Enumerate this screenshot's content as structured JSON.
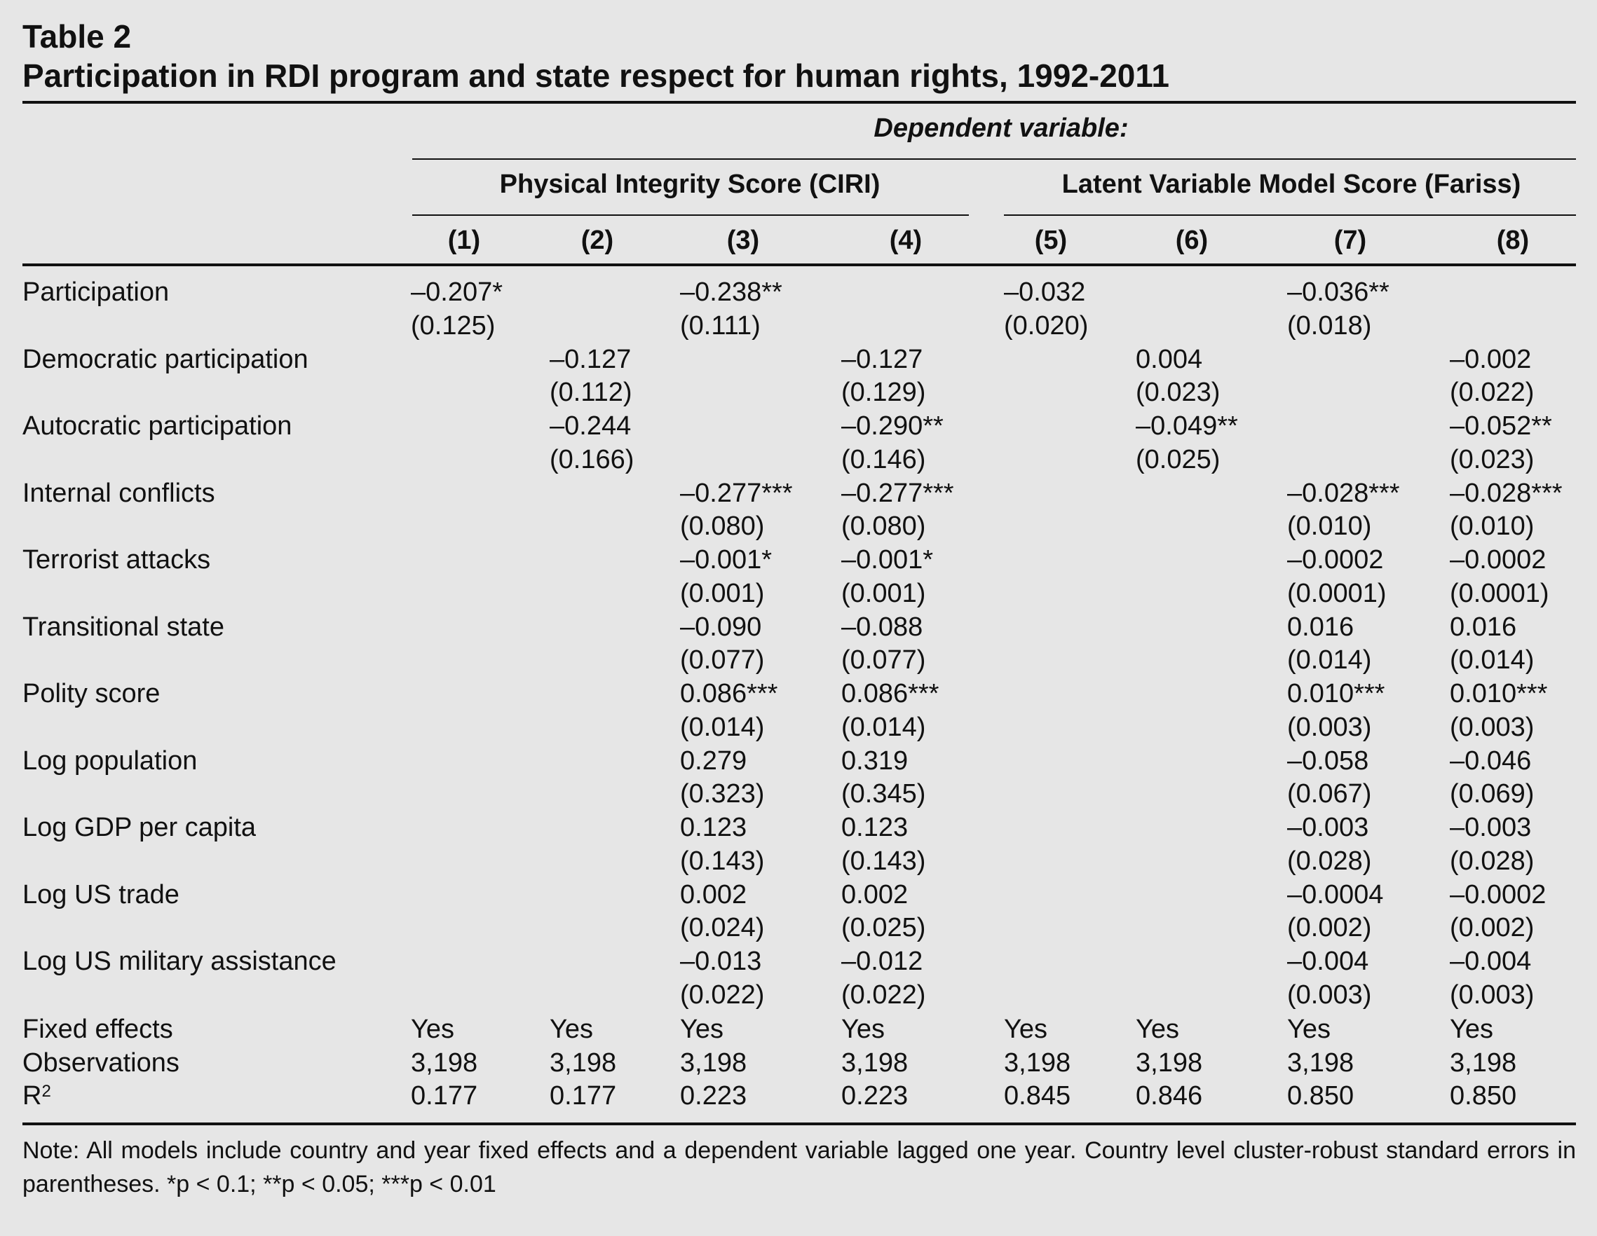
{
  "table_label": "Table 2",
  "table_title": "Participation in RDI program and state respect for human rights, 1992-2011",
  "dependent_variable_label": "Dependent variable:",
  "groups": [
    {
      "label": "Physical Integrity Score (CIRI)"
    },
    {
      "label": "Latent Variable Model Score (Fariss)"
    }
  ],
  "columns": [
    "(1)",
    "(2)",
    "(3)",
    "(4)",
    "(5)",
    "(6)",
    "(7)",
    "(8)"
  ],
  "rows": [
    {
      "label": "Participation",
      "coef": [
        "–0.207*",
        "",
        "–0.238**",
        "",
        "–0.032",
        "",
        "–0.036**",
        ""
      ],
      "se": [
        "(0.125)",
        "",
        "(0.111)",
        "",
        "(0.020)",
        "",
        "(0.018)",
        ""
      ]
    },
    {
      "label": "Democratic participation",
      "coef": [
        "",
        "–0.127",
        "",
        "–0.127",
        "",
        "0.004",
        "",
        "–0.002"
      ],
      "se": [
        "",
        "(0.112)",
        "",
        "(0.129)",
        "",
        "(0.023)",
        "",
        "(0.022)"
      ]
    },
    {
      "label": "Autocratic participation",
      "coef": [
        "",
        "–0.244",
        "",
        "–0.290**",
        "",
        "–0.049**",
        "",
        "–0.052**"
      ],
      "se": [
        "",
        "(0.166)",
        "",
        "(0.146)",
        "",
        "(0.025)",
        "",
        "(0.023)"
      ]
    },
    {
      "label": "Internal conflicts",
      "coef": [
        "",
        "",
        "–0.277***",
        "–0.277***",
        "",
        "",
        "–0.028***",
        "–0.028***"
      ],
      "se": [
        "",
        "",
        "(0.080)",
        "(0.080)",
        "",
        "",
        "(0.010)",
        "(0.010)"
      ]
    },
    {
      "label": "Terrorist attacks",
      "coef": [
        "",
        "",
        "–0.001*",
        "–0.001*",
        "",
        "",
        "–0.0002",
        "–0.0002"
      ],
      "se": [
        "",
        "",
        "(0.001)",
        "(0.001)",
        "",
        "",
        "(0.0001)",
        "(0.0001)"
      ]
    },
    {
      "label": "Transitional state",
      "coef": [
        "",
        "",
        "–0.090",
        "–0.088",
        "",
        "",
        "0.016",
        "0.016"
      ],
      "se": [
        "",
        "",
        "(0.077)",
        "(0.077)",
        "",
        "",
        "(0.014)",
        "(0.014)"
      ]
    },
    {
      "label": "Polity score",
      "coef": [
        "",
        "",
        "0.086***",
        "0.086***",
        "",
        "",
        "0.010***",
        "0.010***"
      ],
      "se": [
        "",
        "",
        "(0.014)",
        "(0.014)",
        "",
        "",
        "(0.003)",
        "(0.003)"
      ]
    },
    {
      "label": "Log population",
      "coef": [
        "",
        "",
        "0.279",
        "0.319",
        "",
        "",
        "–0.058",
        "–0.046"
      ],
      "se": [
        "",
        "",
        "(0.323)",
        "(0.345)",
        "",
        "",
        "(0.067)",
        "(0.069)"
      ]
    },
    {
      "label": "Log GDP per capita",
      "coef": [
        "",
        "",
        "0.123",
        "0.123",
        "",
        "",
        "–0.003",
        "–0.003"
      ],
      "se": [
        "",
        "",
        "(0.143)",
        "(0.143)",
        "",
        "",
        "(0.028)",
        "(0.028)"
      ]
    },
    {
      "label": "Log US trade",
      "coef": [
        "",
        "",
        "0.002",
        "0.002",
        "",
        "",
        "–0.0004",
        "–0.0002"
      ],
      "se": [
        "",
        "",
        "(0.024)",
        "(0.025)",
        "",
        "",
        "(0.002)",
        "(0.002)"
      ]
    },
    {
      "label": "Log US military assistance",
      "coef": [
        "",
        "",
        "–0.013",
        "–0.012",
        "",
        "",
        "–0.004",
        "–0.004"
      ],
      "se": [
        "",
        "",
        "(0.022)",
        "(0.022)",
        "",
        "",
        "(0.003)",
        "(0.003)"
      ]
    }
  ],
  "stats": [
    {
      "label": "Fixed effects",
      "values": [
        "Yes",
        "Yes",
        "Yes",
        "Yes",
        "Yes",
        "Yes",
        "Yes",
        "Yes"
      ]
    },
    {
      "label": "Observations",
      "values": [
        "3,198",
        "3,198",
        "3,198",
        "3,198",
        "3,198",
        "3,198",
        "3,198",
        "3,198"
      ]
    },
    {
      "label": "R",
      "sup": "2",
      "values": [
        "0.177",
        "0.177",
        "0.223",
        "0.223",
        "0.845",
        "0.846",
        "0.850",
        "0.850"
      ]
    }
  ],
  "note": "Note: All models include country and year fixed effects and a dependent variable lagged one year. Country level cluster-robust standard errors in parentheses. *p < 0.1; **p < 0.05; ***p < 0.01"
}
